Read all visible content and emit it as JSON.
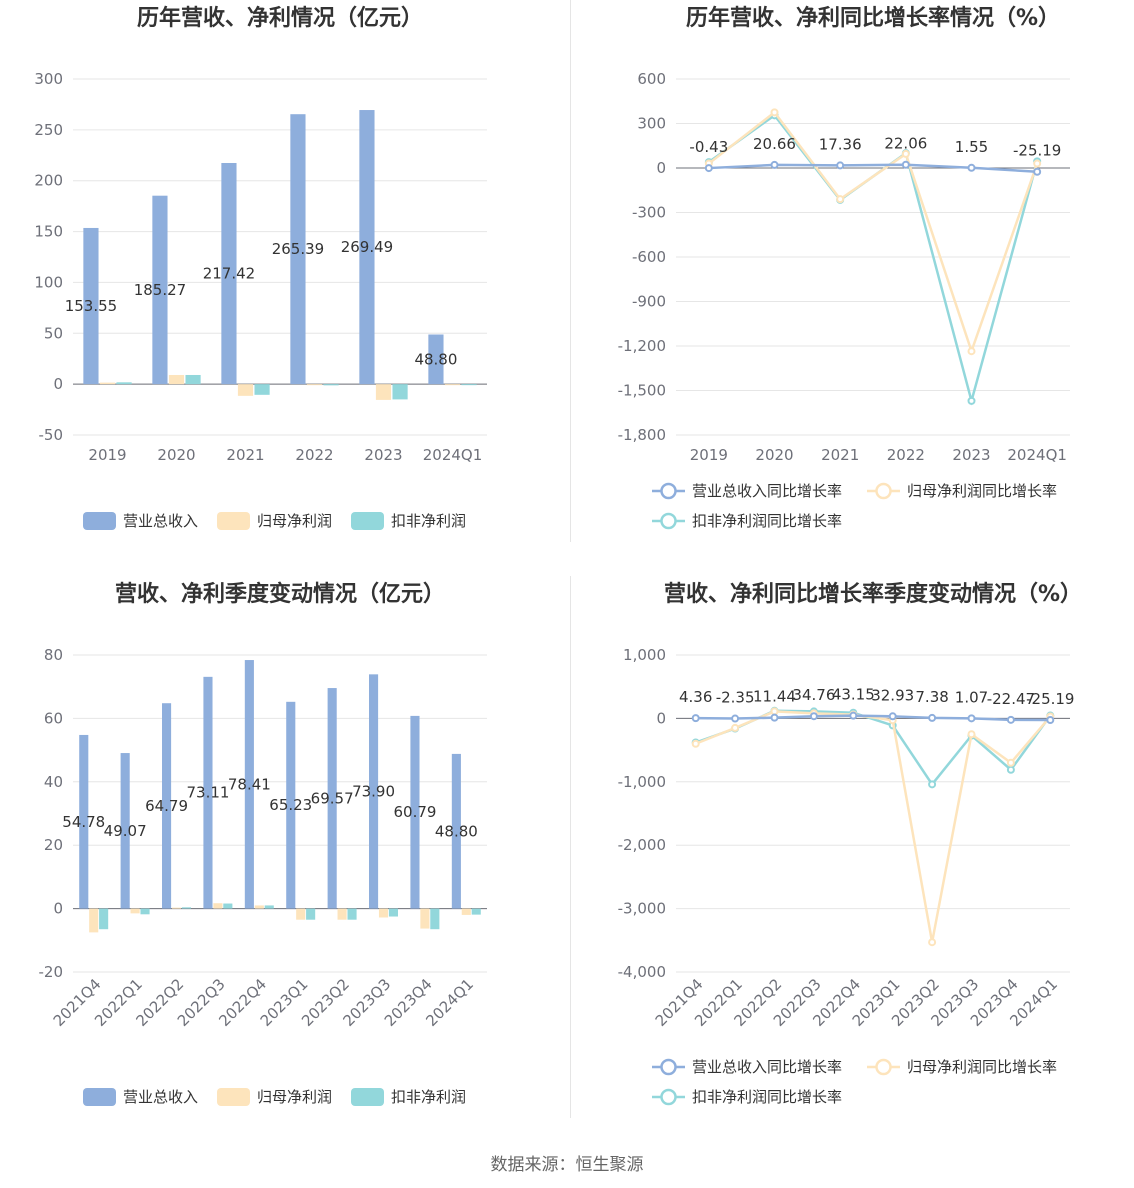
{
  "source_text": "数据来源：恒生聚源",
  "chart_data": [
    {
      "type": "bar",
      "title": "历年营收、净利情况（亿元）",
      "categories": [
        "2019",
        "2020",
        "2021",
        "2022",
        "2023",
        "2024Q1"
      ],
      "series": [
        {
          "name": "营业总收入",
          "color": "#8eaedc",
          "values": [
            153.55,
            185.27,
            217.42,
            265.39,
            269.49,
            48.8
          ]
        },
        {
          "name": "归母净利润",
          "color": "#fde4bc",
          "values": [
            1.5,
            9.0,
            -11.5,
            -1.0,
            -15.5,
            -1.0
          ]
        },
        {
          "name": "扣非净利润",
          "color": "#92d7db",
          "values": [
            1.8,
            9.0,
            -10.5,
            -1.2,
            -15.0,
            -1.0
          ]
        }
      ],
      "data_labels": [
        "153.55",
        "185.27",
        "217.42",
        "265.39",
        "269.49",
        "48.80"
      ],
      "yticks": [
        "300",
        "250",
        "200",
        "150",
        "100",
        "50",
        "0",
        "-50"
      ],
      "ylim": [
        -50,
        300
      ],
      "legend": "bottom",
      "grid": true
    },
    {
      "type": "line",
      "title": "历年营收、净利同比增长率情况（%）",
      "categories": [
        "2019",
        "2020",
        "2021",
        "2022",
        "2023",
        "2024Q1"
      ],
      "series": [
        {
          "name": "营业总收入同比增长率",
          "color": "#8eaedc",
          "values": [
            -0.43,
            20.66,
            17.36,
            22.06,
            1.55,
            -25.19
          ]
        },
        {
          "name": "归母净利润同比增长率",
          "color": "#fde4bc",
          "values": [
            30,
            375,
            -210,
            95,
            -1235,
            30
          ]
        },
        {
          "name": "扣非净利润同比增长率",
          "color": "#92d7db",
          "values": [
            40,
            355,
            -215,
            100,
            -1570,
            45
          ]
        }
      ],
      "data_labels": [
        "-0.43",
        "20.66",
        "17.36",
        "22.06",
        "1.55",
        "-25.19"
      ],
      "yticks": [
        "600",
        "300",
        "0",
        "-300",
        "-600",
        "-900",
        "-1,200",
        "-1,500",
        "-1,800"
      ],
      "ylim": [
        -1800,
        600
      ],
      "legend": "bottom",
      "grid": true
    },
    {
      "type": "bar",
      "title": "营收、净利季度变动情况（亿元）",
      "categories": [
        "2021Q4",
        "2022Q1",
        "2022Q2",
        "2022Q3",
        "2022Q4",
        "2023Q1",
        "2023Q2",
        "2023Q3",
        "2023Q4",
        "2024Q1"
      ],
      "series": [
        {
          "name": "营业总收入",
          "color": "#8eaedc",
          "values": [
            54.78,
            49.07,
            64.79,
            73.11,
            78.41,
            65.23,
            69.57,
            73.9,
            60.79,
            48.8
          ]
        },
        {
          "name": "归母净利润",
          "color": "#fde4bc",
          "values": [
            -7.5,
            -1.5,
            0.3,
            1.7,
            1.0,
            -3.5,
            -3.5,
            -2.8,
            -6.3,
            -2.0
          ]
        },
        {
          "name": "扣非净利润",
          "color": "#92d7db",
          "values": [
            -6.5,
            -1.8,
            0.4,
            1.6,
            1.0,
            -3.5,
            -3.5,
            -2.5,
            -6.5,
            -1.9
          ]
        }
      ],
      "data_labels": [
        "54.78",
        "49.07",
        "64.79",
        "73.11",
        "78.41",
        "65.23",
        "69.57",
        "73.90",
        "60.79",
        "48.80"
      ],
      "yticks": [
        "80",
        "60",
        "40",
        "20",
        "0",
        "-20"
      ],
      "ylim": [
        -20,
        80
      ],
      "legend": "bottom",
      "grid": true
    },
    {
      "type": "line",
      "title": "营收、净利同比增长率季度变动情况（%）",
      "categories": [
        "2021Q4",
        "2022Q1",
        "2022Q2",
        "2022Q3",
        "2022Q4",
        "2023Q1",
        "2023Q2",
        "2023Q3",
        "2023Q4",
        "2024Q1"
      ],
      "series": [
        {
          "name": "营业总收入同比增长率",
          "color": "#8eaedc",
          "values": [
            4.36,
            -2.35,
            11.44,
            34.76,
            43.15,
            32.93,
            7.38,
            1.07,
            -22.47,
            -25.19
          ]
        },
        {
          "name": "归母净利润同比增长率",
          "color": "#fde4bc",
          "values": [
            -400,
            -150,
            110,
            80,
            60,
            -30,
            -3530,
            -250,
            -700,
            30
          ]
        },
        {
          "name": "扣非净利润同比增长率",
          "color": "#92d7db",
          "values": [
            -380,
            -160,
            120,
            110,
            90,
            -110,
            -1040,
            -270,
            -810,
            45
          ]
        }
      ],
      "data_labels": [
        "4.36",
        "-2.35",
        "11.44",
        "34.76",
        "43.15",
        "32.93",
        "7.38",
        "1.07",
        "-22.47",
        "-25.19"
      ],
      "yticks": [
        "1,000",
        "0",
        "-1,000",
        "-2,000",
        "-3,000",
        "-4,000"
      ],
      "ylim": [
        -4000,
        1000
      ],
      "legend": "bottom",
      "grid": true
    }
  ]
}
